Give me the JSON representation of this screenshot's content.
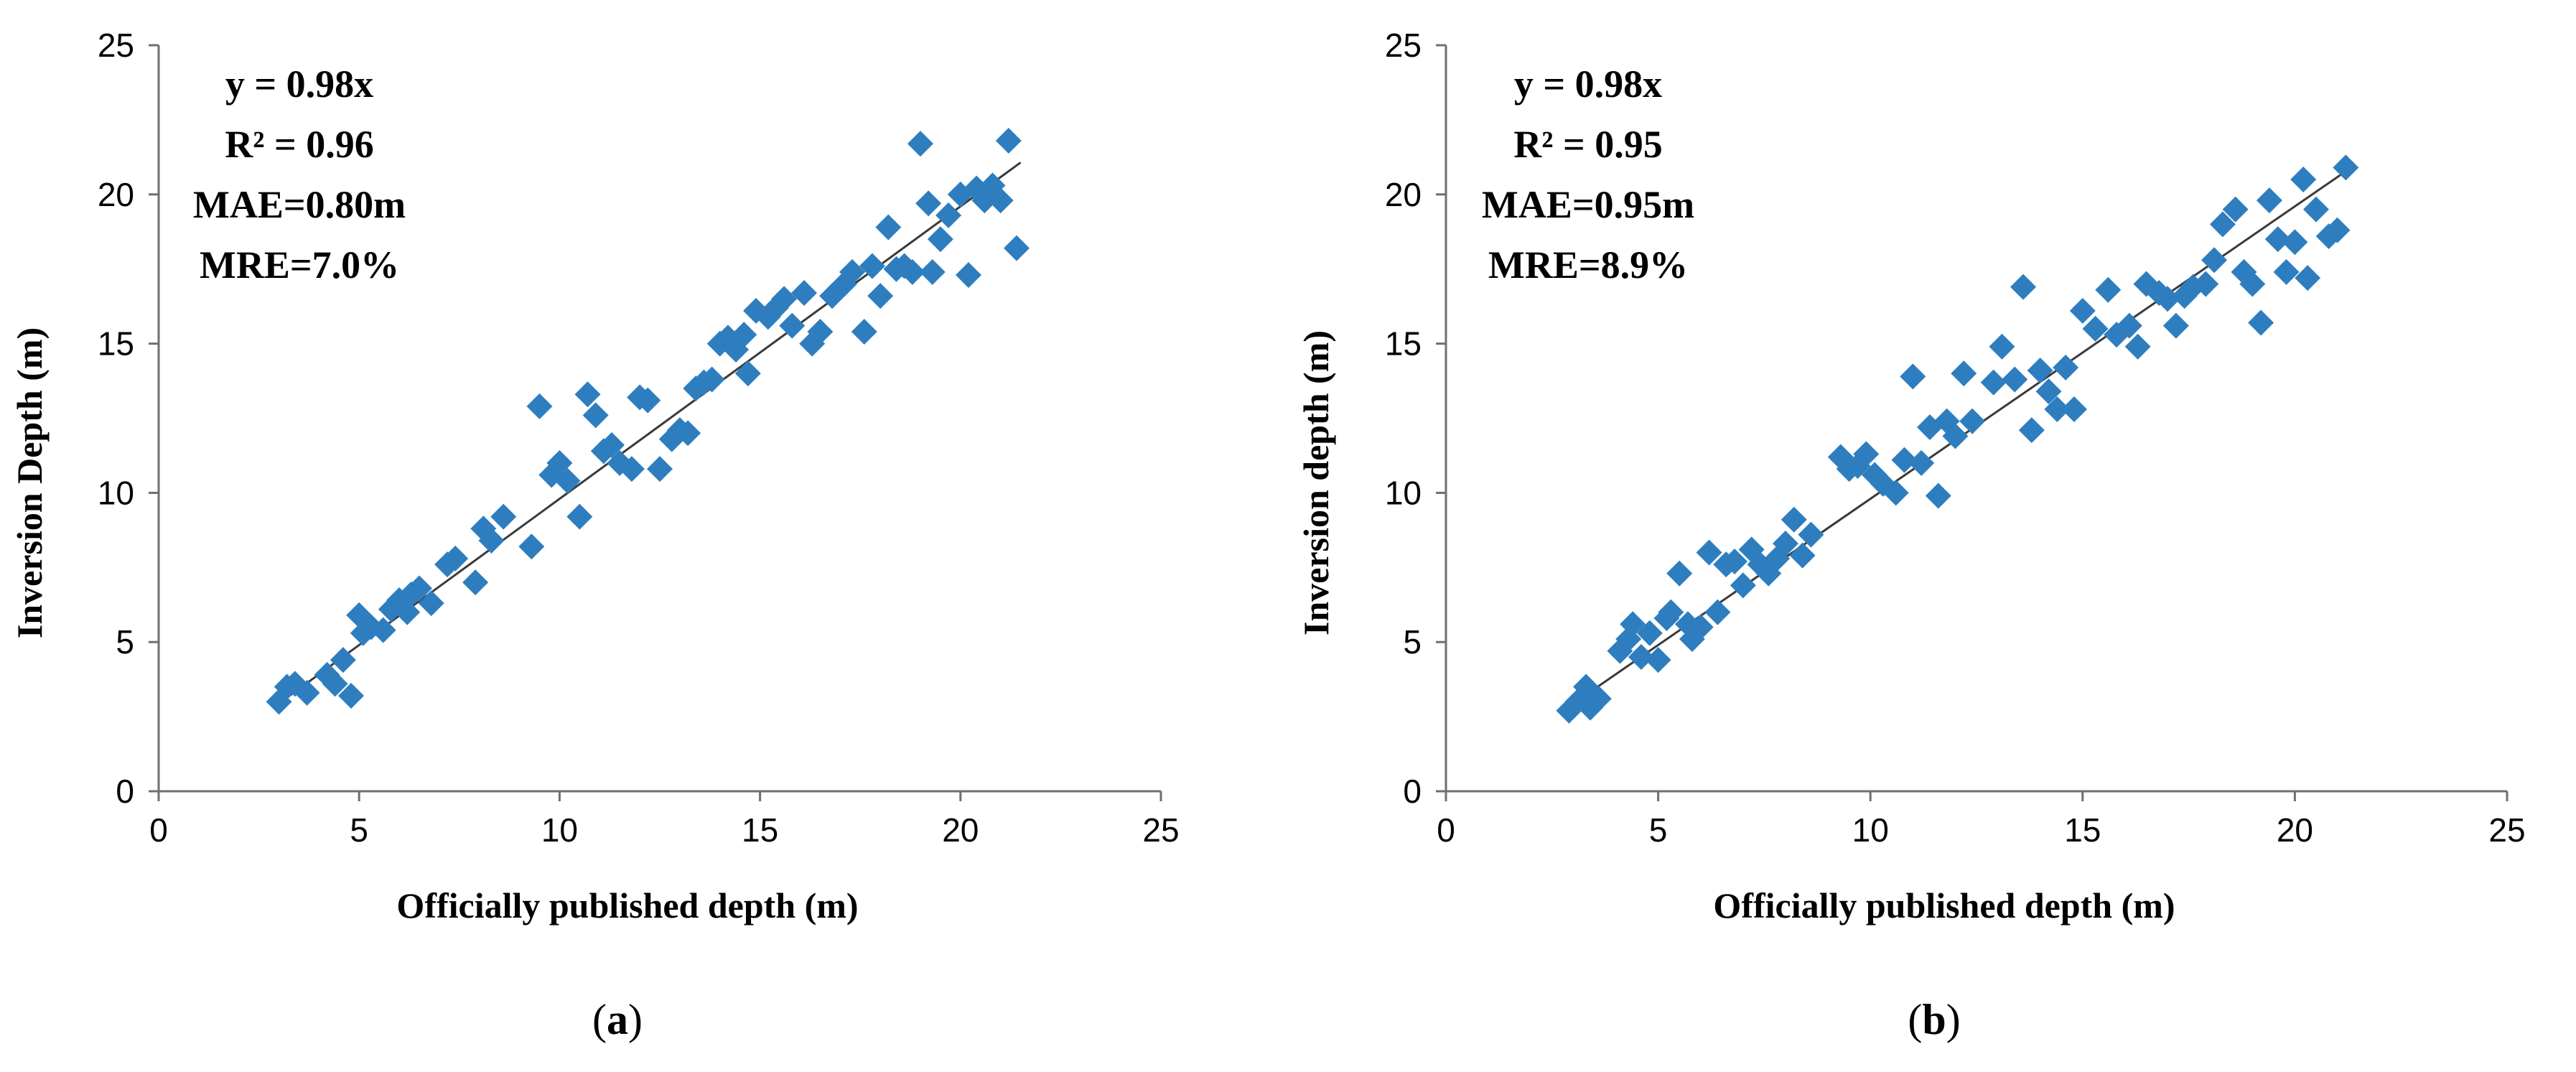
{
  "chart_data": [
    {
      "type": "scatter",
      "panel": "(a)",
      "xlabel": "Officially published depth (m)",
      "ylabel": "Inversion Depth (m)",
      "xlim": [
        0,
        25
      ],
      "ylim": [
        0,
        25
      ],
      "xticks": [
        "0",
        "5",
        "10",
        "15",
        "20",
        "25"
      ],
      "yticks": [
        "0",
        "5",
        "10",
        "15",
        "20",
        "25"
      ],
      "annotations": [
        "y = 0.98x",
        "R² = 0.96",
        "MAE=0.80m",
        "MRE=7.0%"
      ],
      "fit_line": {
        "slope": 0.98,
        "x_range": [
          3.0,
          21.5
        ]
      },
      "marker_color": "#2e7ebf",
      "points": [
        [
          3.0,
          3.0
        ],
        [
          3.2,
          3.5
        ],
        [
          3.4,
          3.6
        ],
        [
          3.7,
          3.3
        ],
        [
          4.2,
          3.9
        ],
        [
          4.4,
          3.6
        ],
        [
          4.6,
          4.4
        ],
        [
          4.8,
          3.2
        ],
        [
          5.0,
          5.9
        ],
        [
          5.1,
          5.3
        ],
        [
          5.3,
          5.5
        ],
        [
          5.6,
          5.4
        ],
        [
          5.8,
          6.1
        ],
        [
          6.0,
          6.4
        ],
        [
          6.2,
          6.0
        ],
        [
          6.3,
          6.6
        ],
        [
          6.5,
          6.8
        ],
        [
          6.8,
          6.3
        ],
        [
          7.2,
          7.6
        ],
        [
          7.4,
          7.8
        ],
        [
          7.9,
          7.0
        ],
        [
          8.1,
          8.8
        ],
        [
          8.3,
          8.4
        ],
        [
          8.6,
          9.2
        ],
        [
          9.3,
          8.2
        ],
        [
          9.5,
          12.9
        ],
        [
          9.8,
          10.6
        ],
        [
          10.0,
          11.0
        ],
        [
          10.2,
          10.4
        ],
        [
          10.5,
          9.2
        ],
        [
          10.7,
          13.3
        ],
        [
          10.9,
          12.6
        ],
        [
          11.1,
          11.4
        ],
        [
          11.3,
          11.6
        ],
        [
          11.5,
          11.0
        ],
        [
          11.8,
          10.8
        ],
        [
          12.0,
          13.2
        ],
        [
          12.2,
          13.1
        ],
        [
          12.5,
          10.8
        ],
        [
          12.8,
          11.8
        ],
        [
          13.0,
          12.1
        ],
        [
          13.2,
          12.0
        ],
        [
          13.4,
          13.5
        ],
        [
          13.6,
          13.7
        ],
        [
          13.8,
          13.8
        ],
        [
          14.0,
          15.0
        ],
        [
          14.2,
          15.2
        ],
        [
          14.4,
          14.8
        ],
        [
          14.6,
          15.3
        ],
        [
          14.7,
          14.0
        ],
        [
          14.9,
          16.1
        ],
        [
          15.2,
          15.9
        ],
        [
          15.4,
          16.2
        ],
        [
          15.6,
          16.5
        ],
        [
          15.8,
          15.6
        ],
        [
          16.1,
          16.7
        ],
        [
          16.3,
          15.0
        ],
        [
          16.5,
          15.4
        ],
        [
          16.8,
          16.6
        ],
        [
          17.1,
          17.0
        ],
        [
          17.3,
          17.4
        ],
        [
          17.6,
          15.4
        ],
        [
          17.8,
          17.6
        ],
        [
          18.0,
          16.6
        ],
        [
          18.2,
          18.9
        ],
        [
          18.4,
          17.5
        ],
        [
          18.6,
          17.6
        ],
        [
          18.8,
          17.4
        ],
        [
          19.0,
          21.7
        ],
        [
          19.2,
          19.7
        ],
        [
          19.3,
          17.4
        ],
        [
          19.5,
          18.5
        ],
        [
          19.7,
          19.3
        ],
        [
          20.0,
          20.0
        ],
        [
          20.2,
          17.3
        ],
        [
          20.4,
          20.2
        ],
        [
          20.6,
          19.8
        ],
        [
          20.8,
          20.3
        ],
        [
          21.0,
          19.8
        ],
        [
          21.2,
          21.8
        ],
        [
          21.4,
          18.2
        ]
      ]
    },
    {
      "type": "scatter",
      "panel": "(b)",
      "xlabel": "Officially published depth (m)",
      "ylabel": "Inversion depth (m)",
      "xlim": [
        0,
        25
      ],
      "ylim": [
        0,
        25
      ],
      "xticks": [
        "0",
        "5",
        "10",
        "15",
        "20",
        "25"
      ],
      "yticks": [
        "0",
        "5",
        "10",
        "15",
        "20",
        "25"
      ],
      "annotations": [
        "y = 0.98x",
        "R² = 0.95",
        "MAE=0.95m",
        "MRE=8.9%"
      ],
      "fit_line": {
        "slope": 0.98,
        "x_range": [
          2.8,
          21.2
        ]
      },
      "marker_color": "#2e7ebf",
      "points": [
        [
          2.9,
          2.7
        ],
        [
          3.1,
          3.0
        ],
        [
          3.3,
          3.5
        ],
        [
          3.4,
          2.8
        ],
        [
          3.6,
          3.1
        ],
        [
          4.1,
          4.7
        ],
        [
          4.3,
          5.1
        ],
        [
          4.4,
          5.6
        ],
        [
          4.6,
          4.5
        ],
        [
          4.8,
          5.3
        ],
        [
          5.0,
          4.4
        ],
        [
          5.2,
          5.8
        ],
        [
          5.3,
          6.0
        ],
        [
          5.5,
          7.3
        ],
        [
          5.7,
          5.6
        ],
        [
          5.8,
          5.1
        ],
        [
          6.0,
          5.5
        ],
        [
          6.2,
          8.0
        ],
        [
          6.4,
          6.0
        ],
        [
          6.6,
          7.6
        ],
        [
          6.8,
          7.7
        ],
        [
          7.0,
          6.9
        ],
        [
          7.2,
          8.1
        ],
        [
          7.4,
          7.6
        ],
        [
          7.6,
          7.3
        ],
        [
          7.8,
          7.8
        ],
        [
          8.0,
          8.3
        ],
        [
          8.2,
          9.1
        ],
        [
          8.4,
          7.9
        ],
        [
          8.6,
          8.6
        ],
        [
          9.3,
          11.2
        ],
        [
          9.5,
          10.8
        ],
        [
          9.7,
          10.9
        ],
        [
          9.9,
          11.3
        ],
        [
          10.1,
          10.6
        ],
        [
          10.3,
          10.3
        ],
        [
          10.6,
          10.0
        ],
        [
          10.8,
          11.1
        ],
        [
          11.0,
          13.9
        ],
        [
          11.2,
          11.0
        ],
        [
          11.4,
          12.2
        ],
        [
          11.6,
          9.9
        ],
        [
          11.8,
          12.4
        ],
        [
          12.0,
          11.9
        ],
        [
          12.2,
          14.0
        ],
        [
          12.4,
          12.4
        ],
        [
          12.9,
          13.7
        ],
        [
          13.1,
          14.9
        ],
        [
          13.4,
          13.8
        ],
        [
          13.6,
          16.9
        ],
        [
          13.8,
          12.1
        ],
        [
          14.0,
          14.1
        ],
        [
          14.2,
          13.4
        ],
        [
          14.4,
          12.8
        ],
        [
          14.6,
          14.2
        ],
        [
          14.8,
          12.8
        ],
        [
          15.0,
          16.1
        ],
        [
          15.3,
          15.5
        ],
        [
          15.6,
          16.8
        ],
        [
          15.8,
          15.3
        ],
        [
          16.1,
          15.6
        ],
        [
          16.3,
          14.9
        ],
        [
          16.5,
          17.0
        ],
        [
          16.8,
          16.7
        ],
        [
          17.0,
          16.5
        ],
        [
          17.2,
          15.6
        ],
        [
          17.4,
          16.6
        ],
        [
          17.6,
          16.9
        ],
        [
          17.9,
          17.0
        ],
        [
          18.1,
          17.8
        ],
        [
          18.3,
          19.0
        ],
        [
          18.6,
          19.5
        ],
        [
          18.8,
          17.4
        ],
        [
          19.0,
          17.0
        ],
        [
          19.2,
          15.7
        ],
        [
          19.4,
          19.8
        ],
        [
          19.6,
          18.5
        ],
        [
          19.8,
          17.4
        ],
        [
          20.0,
          18.4
        ],
        [
          20.2,
          20.5
        ],
        [
          20.3,
          17.2
        ],
        [
          20.5,
          19.5
        ],
        [
          20.8,
          18.6
        ],
        [
          21.0,
          18.8
        ],
        [
          21.2,
          20.9
        ]
      ]
    }
  ]
}
